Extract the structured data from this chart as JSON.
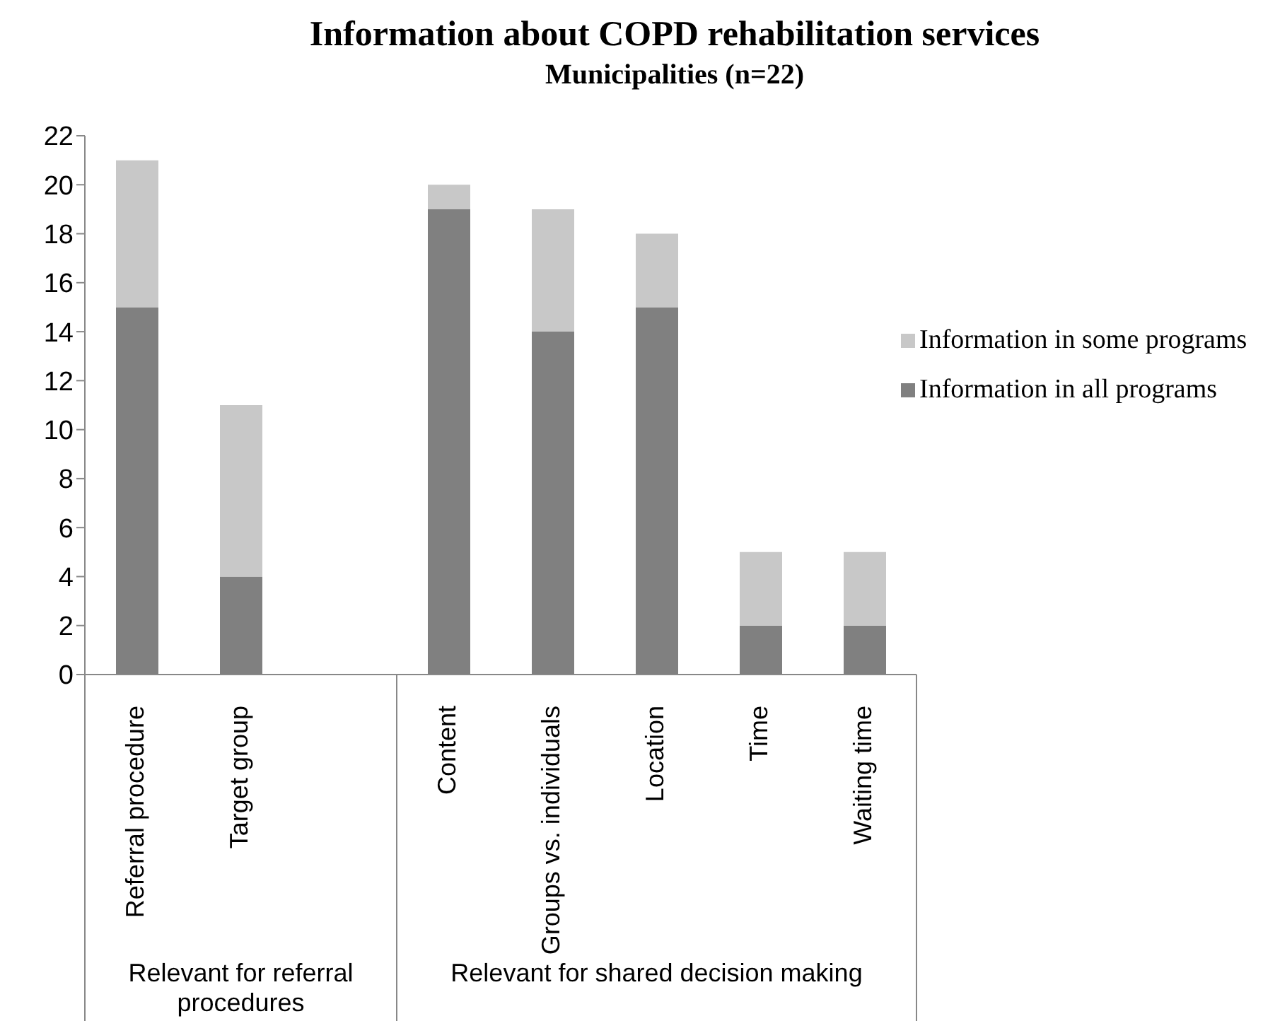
{
  "chart_data": {
    "type": "bar",
    "title": "Information about COPD rehabilitation services",
    "subtitle": "Municipalities (n=22)",
    "categories": [
      "Referral procedure",
      "Target group",
      null,
      "Content",
      "Groups vs. individuals",
      "Location",
      "Time",
      "Waiting time"
    ],
    "series": [
      {
        "name": "Information in all programs",
        "color": "#808080",
        "values": [
          15,
          4,
          null,
          19,
          14,
          15,
          2,
          2
        ]
      },
      {
        "name": "Information in some programs",
        "color": "#c8c8c8",
        "values": [
          6,
          7,
          null,
          1,
          5,
          3,
          3,
          3
        ]
      }
    ],
    "stacked": true,
    "ylim": [
      0,
      22
    ],
    "yticks": [
      0,
      2,
      4,
      6,
      8,
      10,
      12,
      14,
      16,
      18,
      20,
      22
    ],
    "grid": false,
    "legend": "right",
    "annotations": [
      "Relevant for referral procedures",
      "Relevant for shared decision making"
    ]
  }
}
